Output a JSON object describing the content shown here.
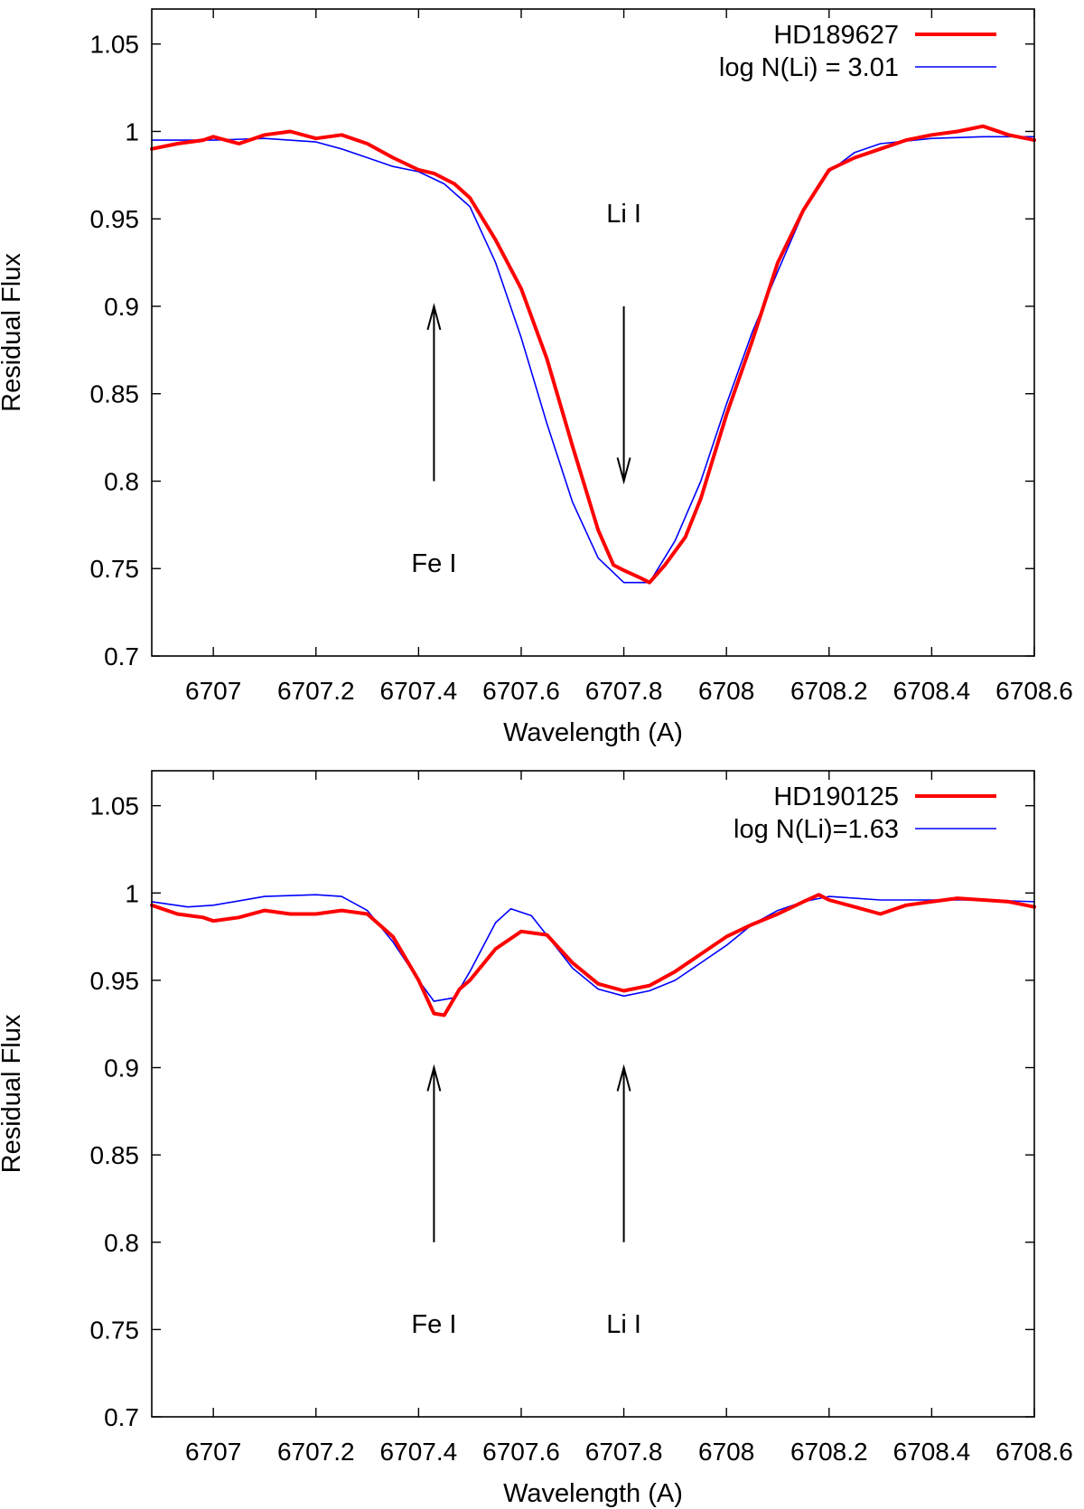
{
  "chart_data": [
    {
      "type": "line",
      "xlabel": "Wavelength (A)",
      "ylabel": "Residual Flux",
      "xlim": [
        6706.88,
        6708.6
      ],
      "ylim": [
        0.7,
        1.07
      ],
      "x_ticks": [
        "6707",
        "6707.2",
        "6707.4",
        "6707.6",
        "6707.8",
        "6708",
        "6708.2",
        "6708.4",
        "6708.6"
      ],
      "x_tick_values": [
        6707.0,
        6707.2,
        6707.4,
        6707.6,
        6707.8,
        6708.0,
        6708.2,
        6708.4,
        6708.6
      ],
      "y_ticks": [
        "0.7",
        "0.75",
        "0.8",
        "0.85",
        "0.9",
        "0.95",
        "1",
        "1.05"
      ],
      "y_tick_values": [
        0.7,
        0.75,
        0.8,
        0.85,
        0.9,
        0.95,
        1.0,
        1.05
      ],
      "legend_position": "top-right",
      "series": [
        {
          "name": "HD189627",
          "color": "#ff0000",
          "x": [
            6706.88,
            6706.93,
            6706.98,
            6707.0,
            6707.05,
            6707.1,
            6707.15,
            6707.2,
            6707.25,
            6707.3,
            6707.35,
            6707.4,
            6707.43,
            6707.47,
            6707.5,
            6707.55,
            6707.6,
            6707.65,
            6707.7,
            6707.75,
            6707.78,
            6707.8,
            6707.83,
            6707.85,
            6707.88,
            6707.92,
            6707.95,
            6708.0,
            6708.05,
            6708.1,
            6708.15,
            6708.2,
            6708.25,
            6708.3,
            6708.35,
            6708.4,
            6708.45,
            6708.5,
            6708.55,
            6708.6
          ],
          "values": [
            0.99,
            0.993,
            0.995,
            0.997,
            0.993,
            0.998,
            1.0,
            0.996,
            0.998,
            0.993,
            0.985,
            0.978,
            0.976,
            0.97,
            0.962,
            0.938,
            0.91,
            0.87,
            0.82,
            0.772,
            0.752,
            0.749,
            0.745,
            0.742,
            0.752,
            0.768,
            0.79,
            0.838,
            0.88,
            0.925,
            0.955,
            0.978,
            0.985,
            0.99,
            0.995,
            0.998,
            1.0,
            1.003,
            0.998,
            0.995
          ]
        },
        {
          "name": "log N(Li) = 3.01",
          "color": "#0000ff",
          "x": [
            6706.88,
            6707.0,
            6707.1,
            6707.2,
            6707.25,
            6707.3,
            6707.35,
            6707.4,
            6707.45,
            6707.5,
            6707.55,
            6707.6,
            6707.65,
            6707.7,
            6707.75,
            6707.8,
            6707.85,
            6707.9,
            6707.95,
            6708.0,
            6708.05,
            6708.1,
            6708.15,
            6708.2,
            6708.25,
            6708.3,
            6708.4,
            6708.5,
            6708.6
          ],
          "values": [
            0.995,
            0.995,
            0.996,
            0.994,
            0.99,
            0.985,
            0.98,
            0.977,
            0.97,
            0.957,
            0.925,
            0.882,
            0.833,
            0.788,
            0.756,
            0.742,
            0.742,
            0.766,
            0.8,
            0.844,
            0.885,
            0.92,
            0.954,
            0.977,
            0.988,
            0.993,
            0.996,
            0.997,
            0.997
          ]
        }
      ],
      "annotations": [
        {
          "text": "Li I",
          "x": 6707.8,
          "y": 0.948
        },
        {
          "text": "Fe I",
          "x": 6707.43,
          "y": 0.748
        }
      ],
      "arrows": [
        {
          "x": 6707.43,
          "y_from": 0.8,
          "y_to": 0.9,
          "direction": "up"
        },
        {
          "x": 6707.8,
          "y_from": 0.9,
          "y_to": 0.8,
          "direction": "down"
        }
      ]
    },
    {
      "type": "line",
      "xlabel": "Wavelength (A)",
      "ylabel": "Residual Flux",
      "xlim": [
        6706.88,
        6708.6
      ],
      "ylim": [
        0.7,
        1.07
      ],
      "x_ticks": [
        "6707",
        "6707.2",
        "6707.4",
        "6707.6",
        "6707.8",
        "6708",
        "6708.2",
        "6708.4",
        "6708.6"
      ],
      "x_tick_values": [
        6707.0,
        6707.2,
        6707.4,
        6707.6,
        6707.8,
        6708.0,
        6708.2,
        6708.4,
        6708.6
      ],
      "y_ticks": [
        "0.7",
        "0.75",
        "0.8",
        "0.85",
        "0.9",
        "0.95",
        "1",
        "1.05"
      ],
      "y_tick_values": [
        0.7,
        0.75,
        0.8,
        0.85,
        0.9,
        0.95,
        1.0,
        1.05
      ],
      "legend_position": "top-right",
      "series": [
        {
          "name": "HD190125",
          "color": "#ff0000",
          "x": [
            6706.88,
            6706.93,
            6706.98,
            6707.0,
            6707.05,
            6707.1,
            6707.15,
            6707.2,
            6707.25,
            6707.3,
            6707.35,
            6707.4,
            6707.43,
            6707.45,
            6707.48,
            6707.5,
            6707.55,
            6707.6,
            6707.65,
            6707.7,
            6707.75,
            6707.8,
            6707.85,
            6707.9,
            6707.95,
            6708.0,
            6708.05,
            6708.1,
            6708.15,
            6708.18,
            6708.2,
            6708.25,
            6708.3,
            6708.35,
            6708.4,
            6708.45,
            6708.5,
            6708.55,
            6708.6
          ],
          "values": [
            0.993,
            0.988,
            0.986,
            0.984,
            0.986,
            0.99,
            0.988,
            0.988,
            0.99,
            0.988,
            0.975,
            0.95,
            0.931,
            0.93,
            0.945,
            0.95,
            0.968,
            0.978,
            0.976,
            0.96,
            0.948,
            0.944,
            0.947,
            0.955,
            0.965,
            0.975,
            0.982,
            0.988,
            0.995,
            0.999,
            0.996,
            0.992,
            0.988,
            0.993,
            0.995,
            0.997,
            0.996,
            0.995,
            0.992
          ]
        },
        {
          "name": "log N(Li)=1.63",
          "color": "#0000ff",
          "x": [
            6706.88,
            6706.95,
            6707.0,
            6707.1,
            6707.2,
            6707.25,
            6707.3,
            6707.35,
            6707.4,
            6707.43,
            6707.47,
            6707.5,
            6707.55,
            6707.58,
            6707.62,
            6707.66,
            6707.7,
            6707.75,
            6707.8,
            6707.85,
            6707.9,
            6707.95,
            6708.0,
            6708.05,
            6708.1,
            6708.15,
            6708.2,
            6708.3,
            6708.4,
            6708.5,
            6708.6
          ],
          "values": [
            0.995,
            0.992,
            0.993,
            0.998,
            0.999,
            0.998,
            0.99,
            0.972,
            0.95,
            0.938,
            0.94,
            0.955,
            0.983,
            0.991,
            0.987,
            0.972,
            0.957,
            0.945,
            0.941,
            0.944,
            0.95,
            0.96,
            0.97,
            0.982,
            0.99,
            0.995,
            0.998,
            0.996,
            0.996,
            0.996,
            0.995
          ]
        }
      ],
      "annotations": [
        {
          "text": "Fe I",
          "x": 6707.43,
          "y": 0.748
        },
        {
          "text": "Li I",
          "x": 6707.8,
          "y": 0.748
        }
      ],
      "arrows": [
        {
          "x": 6707.43,
          "y_from": 0.8,
          "y_to": 0.9,
          "direction": "up"
        },
        {
          "x": 6707.8,
          "y_from": 0.8,
          "y_to": 0.9,
          "direction": "up"
        }
      ]
    }
  ]
}
